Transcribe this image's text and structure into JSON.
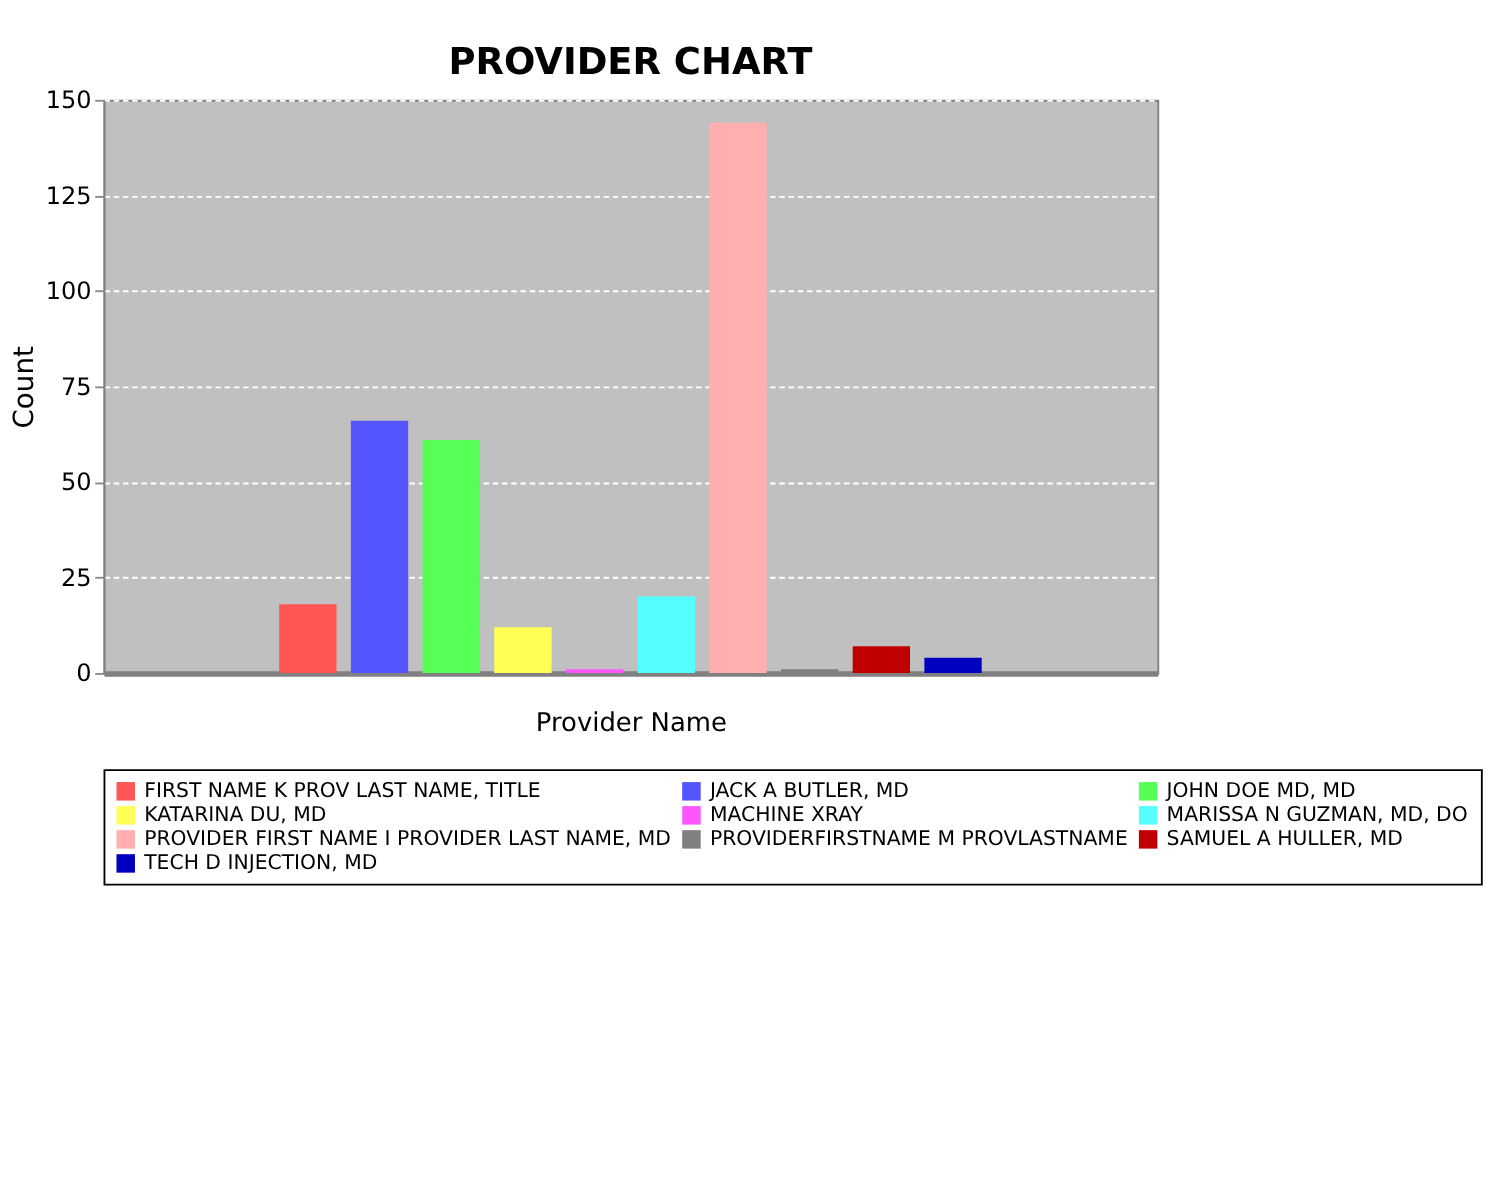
{
  "chart_data": {
    "type": "bar",
    "title": "PROVIDER CHART",
    "xlabel": "Provider Name",
    "ylabel": "Count",
    "categories": [
      null
    ],
    "series": [
      {
        "name": "FIRST NAME K PROV LAST NAME, TITLE",
        "color": "#ff5555",
        "values": [
          18
        ]
      },
      {
        "name": "JACK A BUTLER, MD",
        "color": "#5555ff",
        "values": [
          66
        ]
      },
      {
        "name": "JOHN DOE MD, MD",
        "color": "#55ff55",
        "values": [
          61
        ]
      },
      {
        "name": "KATARINA DU, MD",
        "color": "#ffff55",
        "values": [
          12
        ]
      },
      {
        "name": "MACHINE XRAY",
        "color": "#ff55ff",
        "values": [
          1
        ]
      },
      {
        "name": "MARISSA N GUZMAN, MD, DO",
        "color": "#55ffff",
        "values": [
          20
        ]
      },
      {
        "name": "PROVIDER FIRST NAME I PROVIDER LAST NAME, MD",
        "color": "#ffafaf",
        "values": [
          144
        ]
      },
      {
        "name": "PROVIDERFIRSTNAME M PROVLASTNAME",
        "color": "#808080",
        "values": [
          1
        ]
      },
      {
        "name": "SAMUEL A HULLER, MD",
        "color": "#c00000",
        "values": [
          7
        ]
      },
      {
        "name": "TECH D INJECTION, MD",
        "color": "#0000c0",
        "values": [
          4
        ]
      }
    ],
    "ylim": [
      0,
      150
    ],
    "yticks": [
      0,
      25,
      50,
      75,
      100,
      125,
      150
    ],
    "grid": "y",
    "legend": "bottom",
    "tick_labels": "y"
  }
}
